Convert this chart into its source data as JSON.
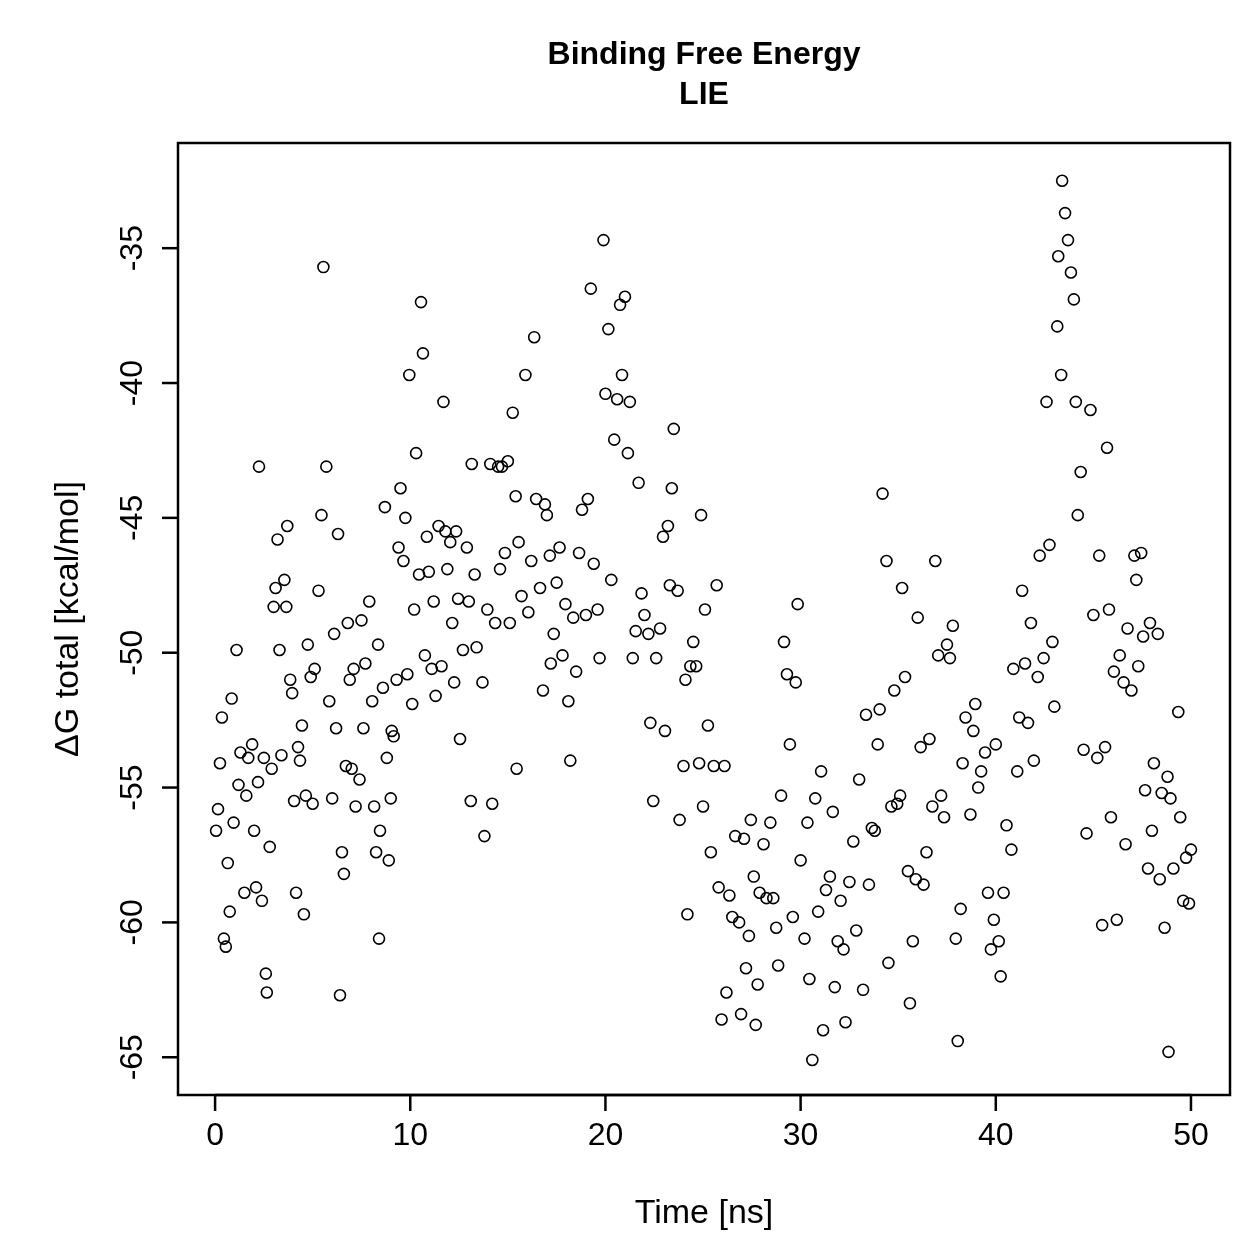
{
  "chart_data": {
    "type": "scatter",
    "title": "Binding Free Energy\nLIE",
    "xlabel": "Time [ns]",
    "ylabel": "ΔG total [kcal/mol]",
    "marker": "circle",
    "color": "#000000",
    "grid": false,
    "xlim": [
      -1.9,
      52
    ],
    "ylim": [
      -66.4,
      -31.1
    ],
    "xticks": [
      0,
      10,
      20,
      30,
      40,
      50
    ],
    "yticks": [
      -35,
      -40,
      -45,
      -50,
      -55,
      -60,
      -65
    ],
    "x": [
      0.05,
      0.15,
      0.25,
      0.35,
      0.45,
      0.55,
      0.65,
      0.75,
      0.85,
      0.95,
      1.1,
      1.2,
      1.3,
      1.5,
      1.6,
      1.7,
      1.9,
      2.0,
      2.1,
      2.2,
      2.25,
      2.4,
      2.5,
      2.6,
      2.65,
      2.8,
      2.9,
      3.0,
      3.1,
      3.2,
      3.3,
      3.4,
      3.55,
      3.65,
      3.7,
      3.85,
      3.95,
      4.05,
      4.15,
      4.25,
      4.35,
      4.45,
      4.55,
      4.65,
      4.75,
      4.9,
      5.0,
      5.1,
      5.3,
      5.45,
      5.55,
      5.7,
      5.85,
      6.0,
      6.1,
      6.2,
      6.3,
      6.4,
      6.5,
      6.6,
      6.7,
      6.8,
      6.9,
      7.0,
      7.1,
      7.2,
      7.4,
      7.5,
      7.6,
      7.7,
      7.9,
      8.05,
      8.15,
      8.25,
      8.35,
      8.4,
      8.45,
      8.6,
      8.7,
      8.8,
      8.9,
      9.0,
      9.05,
      9.15,
      9.3,
      9.4,
      9.5,
      9.65,
      9.75,
      9.85,
      9.95,
      10.1,
      10.2,
      10.3,
      10.45,
      10.55,
      10.65,
      10.75,
      10.85,
      10.95,
      11.1,
      11.2,
      11.3,
      11.45,
      11.6,
      11.7,
      11.8,
      11.9,
      12.05,
      12.15,
      12.25,
      12.35,
      12.45,
      12.55,
      12.7,
      12.9,
      13.0,
      13.1,
      13.15,
      13.3,
      13.4,
      13.7,
      13.8,
      13.95,
      14.1,
      14.2,
      14.35,
      14.5,
      14.6,
      14.7,
      14.85,
      15.0,
      15.1,
      15.25,
      15.4,
      15.45,
      15.55,
      15.7,
      15.9,
      16.05,
      16.2,
      16.35,
      16.45,
      16.65,
      16.8,
      16.9,
      17.0,
      17.15,
      17.2,
      17.35,
      17.5,
      17.65,
      17.8,
      17.95,
      18.1,
      18.2,
      18.35,
      18.5,
      18.65,
      18.8,
      19.0,
      19.1,
      19.25,
      19.4,
      19.6,
      19.7,
      19.9,
      20.0,
      20.15,
      20.3,
      20.45,
      20.6,
      20.75,
      20.85,
      21.0,
      21.15,
      21.25,
      21.4,
      21.55,
      21.7,
      21.85,
      22.0,
      22.2,
      22.3,
      22.45,
      22.6,
      22.8,
      22.95,
      23.05,
      23.2,
      23.3,
      23.4,
      23.5,
      23.7,
      23.8,
      24.0,
      24.1,
      24.2,
      24.35,
      24.5,
      24.65,
      24.8,
      24.9,
      25.0,
      25.1,
      25.25,
      25.4,
      25.55,
      25.7,
      25.8,
      25.95,
      26.1,
      26.2,
      26.35,
      26.5,
      26.65,
      26.85,
      26.95,
      27.1,
      27.2,
      27.35,
      27.45,
      27.6,
      27.7,
      27.8,
      27.9,
      28.1,
      28.25,
      28.45,
      28.6,
      28.75,
      28.85,
      29.0,
      29.15,
      29.3,
      29.45,
      29.6,
      29.75,
      29.85,
      30.0,
      30.2,
      30.35,
      30.45,
      30.6,
      30.75,
      30.9,
      31.05,
      31.15,
      31.3,
      31.5,
      31.65,
      31.75,
      31.9,
      32.05,
      32.2,
      32.3,
      32.5,
      32.7,
      32.85,
      33.0,
      33.2,
      33.35,
      33.5,
      33.65,
      33.8,
      33.95,
      34.05,
      34.2,
      34.4,
      34.5,
      34.65,
      34.8,
      34.95,
      35.1,
      35.2,
      35.35,
      35.5,
      35.6,
      35.75,
      35.9,
      36.0,
      36.15,
      36.3,
      36.45,
      36.6,
      36.75,
      36.9,
      37.05,
      37.2,
      37.35,
      37.5,
      37.65,
      37.8,
      37.95,
      38.05,
      38.2,
      38.3,
      38.45,
      38.7,
      38.85,
      38.95,
      39.1,
      39.25,
      39.45,
      39.6,
      39.75,
      39.9,
      40.0,
      40.15,
      40.25,
      40.4,
      40.55,
      40.8,
      40.9,
      41.1,
      41.2,
      41.35,
      41.5,
      41.65,
      41.8,
      41.95,
      42.15,
      42.25,
      42.45,
      42.6,
      42.75,
      42.9,
      43.0,
      43.15,
      43.2,
      43.35,
      43.4,
      43.55,
      43.7,
      43.85,
      44.0,
      44.1,
      44.2,
      44.35,
      44.5,
      44.65,
      44.85,
      45.0,
      45.2,
      45.3,
      45.45,
      45.6,
      45.7,
      45.8,
      45.9,
      46.05,
      46.2,
      46.35,
      46.55,
      46.65,
      46.75,
      46.95,
      47.1,
      47.2,
      47.3,
      47.45,
      47.55,
      47.65,
      47.8,
      47.9,
      48.0,
      48.1,
      48.3,
      48.4,
      48.5,
      48.65,
      48.8,
      48.85,
      48.95,
      49.1,
      49.35,
      49.45,
      49.6,
      49.75,
      49.9,
      50.0
    ],
    "values": [
      -56.6,
      -55.8,
      -54.1,
      -52.4,
      -60.6,
      -60.9,
      -57.8,
      -59.6,
      -51.7,
      -56.3,
      -49.9,
      -54.9,
      -53.7,
      -58.9,
      -55.3,
      -53.9,
      -53.4,
      -56.6,
      -58.7,
      -54.8,
      -43.1,
      -59.2,
      -53.9,
      -61.9,
      -62.6,
      -57.2,
      -54.3,
      -48.3,
      -47.6,
      -45.8,
      -49.9,
      -53.8,
      -47.3,
      -48.3,
      -45.3,
      -51.0,
      -51.5,
      -55.5,
      -58.9,
      -53.5,
      -54.0,
      -52.7,
      -59.7,
      -55.3,
      -49.7,
      -50.9,
      -55.6,
      -50.6,
      -47.7,
      -44.9,
      -35.7,
      -43.1,
      -51.8,
      -55.4,
      -49.3,
      -52.8,
      -45.6,
      -62.7,
      -57.4,
      -58.2,
      -54.2,
      -48.9,
      -51.0,
      -54.3,
      -50.6,
      -55.7,
      -54.7,
      -48.8,
      -52.8,
      -50.4,
      -48.1,
      -51.8,
      -55.7,
      -57.4,
      -49.7,
      -60.6,
      -56.6,
      -51.3,
      -44.6,
      -53.9,
      -57.7,
      -55.4,
      -52.9,
      -53.1,
      -51.0,
      -46.1,
      -43.9,
      -46.6,
      -45.0,
      -50.8,
      -39.7,
      -51.9,
      -48.4,
      -42.6,
      -47.1,
      -37.0,
      -38.9,
      -50.1,
      -45.7,
      -47.0,
      -50.6,
      -48.1,
      -51.6,
      -45.3,
      -50.5,
      -40.7,
      -45.5,
      -46.9,
      -45.9,
      -48.9,
      -51.1,
      -45.5,
      -48.0,
      -53.2,
      -49.9,
      -46.1,
      -48.1,
      -55.5,
      -43.0,
      -47.1,
      -49.8,
      -51.1,
      -56.8,
      -48.4,
      -43.0,
      -55.6,
      -48.9,
      -43.1,
      -46.9,
      -43.1,
      -46.3,
      -42.9,
      -48.9,
      -41.1,
      -44.2,
      -54.3,
      -45.9,
      -47.9,
      -39.7,
      -48.5,
      -46.6,
      -38.3,
      -44.3,
      -47.6,
      -51.4,
      -44.5,
      -44.9,
      -46.4,
      -50.4,
      -49.3,
      -47.4,
      -46.1,
      -50.1,
      -48.2,
      -51.8,
      -54.0,
      -48.7,
      -50.7,
      -46.3,
      -44.7,
      -48.6,
      -44.3,
      -36.5,
      -46.7,
      -48.4,
      -50.2,
      -34.7,
      -40.4,
      -38.0,
      -47.3,
      -42.1,
      -40.6,
      -37.1,
      -39.7,
      -36.8,
      -42.6,
      -40.7,
      -50.2,
      -49.2,
      -43.7,
      -47.8,
      -48.6,
      -49.3,
      -52.6,
      -55.5,
      -50.2,
      -49.1,
      -45.7,
      -52.9,
      -45.3,
      -47.5,
      -43.9,
      -41.7,
      -47.7,
      -56.2,
      -54.2,
      -51.0,
      -59.7,
      -50.5,
      -49.6,
      -50.5,
      -54.1,
      -44.9,
      -55.7,
      -48.4,
      -52.7,
      -57.4,
      -54.2,
      -47.5,
      -58.7,
      -63.6,
      -54.2,
      -62.6,
      -59.0,
      -59.8,
      -56.8,
      -60.0,
      -63.4,
      -56.9,
      -61.7,
      -60.5,
      -56.2,
      -58.3,
      -63.8,
      -62.3,
      -58.9,
      -57.1,
      -59.1,
      -56.3,
      -59.1,
      -60.2,
      -61.6,
      -55.3,
      -49.6,
      -50.8,
      -53.4,
      -59.8,
      -51.1,
      -48.2,
      -57.7,
      -60.6,
      -56.3,
      -62.1,
      -65.1,
      -55.4,
      -59.6,
      -54.4,
      -64.0,
      -58.8,
      -58.3,
      -55.9,
      -62.4,
      -60.7,
      -59.2,
      -61.0,
      -63.7,
      -58.5,
      -57.0,
      -60.3,
      -54.7,
      -62.5,
      -52.3,
      -58.6,
      -56.5,
      -56.6,
      -53.4,
      -52.1,
      -44.1,
      -46.6,
      -61.5,
      -55.7,
      -51.4,
      -55.6,
      -55.3,
      -47.6,
      -50.9,
      -58.1,
      -63.0,
      -60.7,
      -58.4,
      -48.7,
      -53.5,
      -58.6,
      -57.4,
      -53.2,
      -55.7,
      -46.6,
      -50.1,
      -55.3,
      -56.1,
      -49.7,
      -50.2,
      -49.0,
      -60.6,
      -64.4,
      -59.5,
      -54.1,
      -52.4,
      -56.0,
      -52.9,
      -51.9,
      -55.0,
      -54.4,
      -53.7,
      -58.9,
      -61.0,
      -59.9,
      -53.4,
      -60.7,
      -62.0,
      -58.9,
      -56.4,
      -57.3,
      -50.6,
      -54.4,
      -52.4,
      -47.7,
      -50.4,
      -52.6,
      -48.9,
      -54.0,
      -50.9,
      -46.4,
      -50.2,
      -40.7,
      -46.0,
      -49.6,
      -52.0,
      -37.9,
      -35.3,
      -39.7,
      -32.5,
      -33.7,
      -34.7,
      -35.9,
      -36.9,
      -40.7,
      -44.9,
      -43.3,
      -53.6,
      -56.7,
      -41.0,
      -48.6,
      -53.9,
      -46.4,
      -60.1,
      -53.5,
      -42.4,
      -48.4,
      -56.1,
      -50.7,
      -59.9,
      -50.1,
      -51.1,
      -57.1,
      -49.1,
      -51.4,
      -46.4,
      -47.3,
      -50.5,
      -46.3,
      -49.4,
      -55.1,
      -58.0,
      -48.9,
      -56.6,
      -54.1,
      -49.3,
      -58.4,
      -55.2,
      -60.2,
      -54.6,
      -64.8,
      -55.4,
      -58.0,
      -52.2,
      -56.1,
      -59.2,
      -57.6,
      -59.3,
      -57.3
    ]
  }
}
